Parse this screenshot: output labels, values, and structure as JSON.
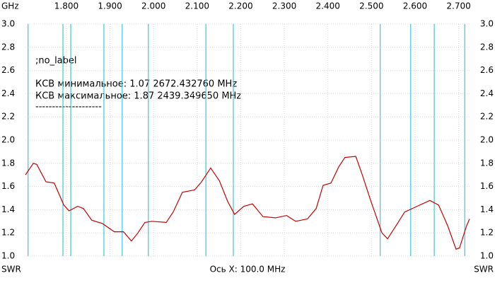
{
  "chart_data": {
    "type": "line",
    "x_unit": "GHz",
    "x_label": "Ось X: 100.0 MHz",
    "y_label": "SWR",
    "y2_label": "SWR",
    "annotations": [
      ";no_label",
      "КСВ минимальное: 1.07  2672.432760 MHz",
      "КСВ максимальное: 1.87  2439.349650 MHz",
      "--------------------"
    ],
    "xlim": [
      1.706,
      2.725
    ],
    "xticks": [
      {
        "value": 1.8,
        "label": "1.800"
      },
      {
        "value": 1.9,
        "label": "1.900"
      },
      {
        "value": 2.0,
        "label": "2.000"
      },
      {
        "value": 2.1,
        "label": "2.100"
      },
      {
        "value": 2.2,
        "label": "2.200"
      },
      {
        "value": 2.3,
        "label": "2.300"
      },
      {
        "value": 2.4,
        "label": "2.400"
      },
      {
        "value": 2.5,
        "label": "2.500"
      },
      {
        "value": 2.6,
        "label": "2.600"
      },
      {
        "value": 2.7,
        "label": "2.700"
      }
    ],
    "ylim": [
      1.0,
      3.0
    ],
    "yticks": [
      {
        "value": 1.0,
        "label": "1.0"
      },
      {
        "value": 1.2,
        "label": "1.2"
      },
      {
        "value": 1.4,
        "label": "1.4"
      },
      {
        "value": 1.6,
        "label": "1.6"
      },
      {
        "value": 1.8,
        "label": "1.8"
      },
      {
        "value": 2.0,
        "label": "2.0"
      },
      {
        "value": 2.2,
        "label": "2.2"
      },
      {
        "value": 2.4,
        "label": "2.4"
      },
      {
        "value": 2.6,
        "label": "2.6"
      },
      {
        "value": 2.8,
        "label": "2.8"
      },
      {
        "value": 3.0,
        "label": "3.0"
      }
    ],
    "grid": true,
    "marker_lines": {
      "color": "#3cc8d2",
      "x": [
        1.712,
        1.792,
        1.81,
        1.886,
        1.928,
        1.988,
        2.12,
        2.183,
        2.52,
        2.59,
        2.644,
        2.714
      ]
    },
    "series": [
      {
        "name": "SWR",
        "color": "#c80000",
        "x": [
          1.706,
          1.724,
          1.732,
          1.753,
          1.772,
          1.794,
          1.806,
          1.826,
          1.839,
          1.858,
          1.883,
          1.91,
          1.931,
          1.949,
          1.964,
          1.98,
          1.996,
          2.029,
          2.045,
          2.066,
          2.094,
          2.11,
          2.131,
          2.151,
          2.17,
          2.186,
          2.207,
          2.227,
          2.251,
          2.28,
          2.305,
          2.326,
          2.353,
          2.373,
          2.389,
          2.407,
          2.425,
          2.439,
          2.464,
          2.478,
          2.499,
          2.524,
          2.537,
          2.556,
          2.576,
          2.605,
          2.634,
          2.654,
          2.675,
          2.694,
          2.702,
          2.718,
          2.725
        ],
        "values": [
          1.7,
          1.8,
          1.79,
          1.64,
          1.63,
          1.44,
          1.39,
          1.43,
          1.41,
          1.31,
          1.28,
          1.21,
          1.21,
          1.13,
          1.2,
          1.29,
          1.3,
          1.29,
          1.38,
          1.55,
          1.57,
          1.64,
          1.76,
          1.65,
          1.47,
          1.36,
          1.43,
          1.45,
          1.34,
          1.33,
          1.35,
          1.3,
          1.32,
          1.41,
          1.61,
          1.63,
          1.77,
          1.85,
          1.86,
          1.71,
          1.47,
          1.2,
          1.15,
          1.26,
          1.38,
          1.43,
          1.48,
          1.44,
          1.26,
          1.06,
          1.07,
          1.26,
          1.32
        ]
      }
    ]
  }
}
